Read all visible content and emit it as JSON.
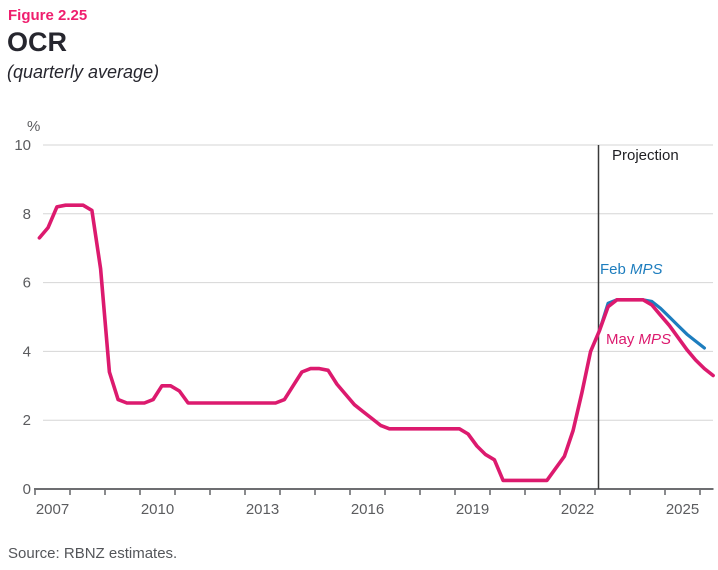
{
  "header": {
    "figure_label": "Figure 2.25",
    "title": "OCR",
    "subtitle": "(quarterly average)"
  },
  "source": "Source: RBNZ estimates.",
  "colors": {
    "figure_label": "#ef1e6e",
    "title_text": "#26262e",
    "axis_text": "#5b5c5f",
    "grid": "#d6d6d6",
    "axis": "#6d6e71",
    "projection_line": "#3a3a3a",
    "projection_text": "#1f1f23",
    "source_text": "#54565a"
  },
  "chart_data": {
    "type": "line",
    "title": "OCR",
    "subtitle": "(quarterly average)",
    "unit_label": "%",
    "ylabel": "%",
    "ylim": [
      0,
      10
    ],
    "yticks": [
      0,
      2,
      4,
      6,
      8,
      10
    ],
    "grid": true,
    "x_start_year": 2007,
    "x_end_year": 2026,
    "xlim": [
      2007,
      2026.4
    ],
    "xticks_labeled": [
      {
        "year": 2007,
        "label": "2007"
      },
      {
        "year": 2010,
        "label": "2010"
      },
      {
        "year": 2013,
        "label": "2013"
      },
      {
        "year": 2016,
        "label": "2016"
      },
      {
        "year": 2019,
        "label": "2019"
      },
      {
        "year": 2022,
        "label": "2022"
      },
      {
        "year": 2025,
        "label": "2025"
      }
    ],
    "projection": {
      "boundary_year": 2023.1,
      "label": "Projection"
    },
    "series": [
      {
        "name": "Feb MPS",
        "label_plain": "Feb ",
        "label_italic": "MPS",
        "color": "#1d7dbe",
        "x_start": 2023.125,
        "x_step": 0.25,
        "values": [
          4.6,
          5.4,
          5.5,
          5.5,
          5.5,
          5.5,
          5.45,
          5.25,
          5.0,
          4.75,
          4.5,
          4.3,
          4.1
        ]
      },
      {
        "name": "May MPS",
        "label_plain": "May ",
        "label_italic": "MPS",
        "color": "#dc1a6e",
        "x_start": 2007.125,
        "x_step": 0.25,
        "values": [
          7.3,
          7.6,
          8.2,
          8.25,
          8.25,
          8.25,
          8.1,
          6.4,
          3.4,
          2.6,
          2.5,
          2.5,
          2.5,
          2.6,
          3.0,
          3.0,
          2.85,
          2.5,
          2.5,
          2.5,
          2.5,
          2.5,
          2.5,
          2.5,
          2.5,
          2.5,
          2.5,
          2.5,
          2.6,
          3.0,
          3.4,
          3.5,
          3.5,
          3.45,
          3.05,
          2.75,
          2.45,
          2.25,
          2.05,
          1.85,
          1.75,
          1.75,
          1.75,
          1.75,
          1.75,
          1.75,
          1.75,
          1.75,
          1.75,
          1.6,
          1.25,
          1.0,
          0.85,
          0.25,
          0.25,
          0.25,
          0.25,
          0.25,
          0.25,
          0.6,
          0.95,
          1.7,
          2.8,
          4.0,
          4.6,
          5.3,
          5.5,
          5.5,
          5.5,
          5.5,
          5.35,
          5.05,
          4.75,
          4.4,
          4.05,
          3.75,
          3.5,
          3.3
        ]
      }
    ]
  }
}
